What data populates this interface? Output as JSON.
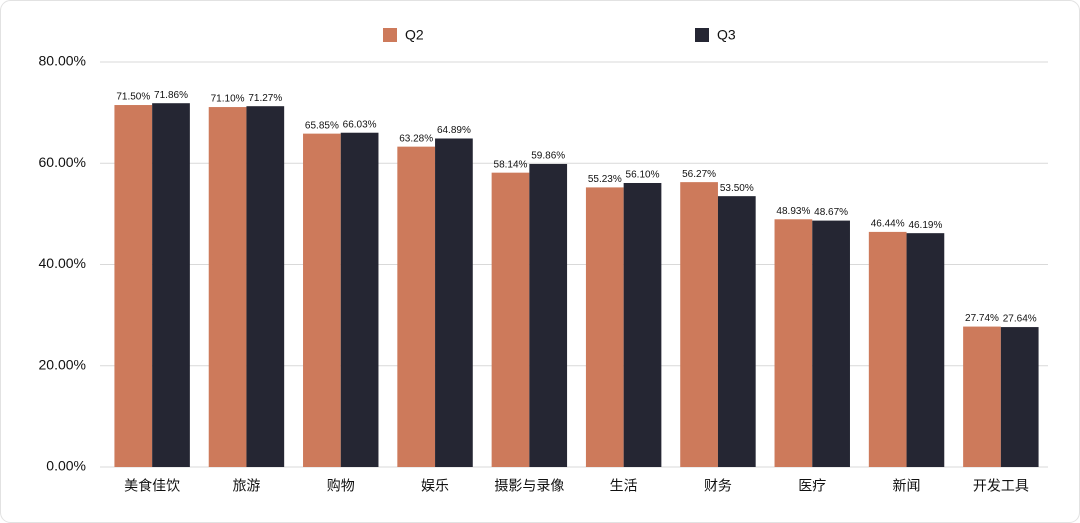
{
  "chart_data": {
    "type": "bar",
    "categories": [
      "美食佳饮",
      "旅游",
      "购物",
      "娱乐",
      "摄影与录像",
      "生活",
      "财务",
      "医疗",
      "新闻",
      "开发工具"
    ],
    "series": [
      {
        "name": "Q2",
        "color": "#cd7a5b",
        "values": [
          71.5,
          71.1,
          65.85,
          63.28,
          58.14,
          55.23,
          56.27,
          48.93,
          46.44,
          27.74
        ],
        "value_labels": [
          "71.50%",
          "71.10%",
          "65.85%",
          "63.28%",
          "58.14%",
          "55.23%",
          "56.27%",
          "48.93%",
          "46.44%",
          "27.74%"
        ]
      },
      {
        "name": "Q3",
        "color": "#252633",
        "values": [
          71.86,
          71.27,
          66.03,
          64.89,
          59.86,
          56.1,
          53.5,
          48.67,
          46.19,
          27.64
        ],
        "value_labels": [
          "71.86%",
          "71.27%",
          "66.03%",
          "64.89%",
          "59.86%",
          "56.10%",
          "53.50%",
          "48.67%",
          "46.19%",
          "27.64%"
        ]
      }
    ],
    "ylim": [
      0,
      80
    ],
    "yticks": [
      {
        "value": 0,
        "label": "0.00%"
      },
      {
        "value": 20,
        "label": "20.00%"
      },
      {
        "value": 40,
        "label": "40.00%"
      },
      {
        "value": 60,
        "label": "60.00%"
      },
      {
        "value": 80,
        "label": "80.00%"
      }
    ],
    "grid": true,
    "legend": "top"
  }
}
